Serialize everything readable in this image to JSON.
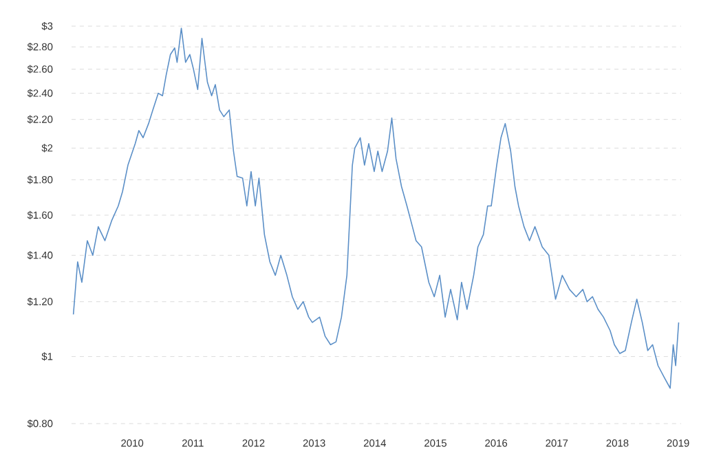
{
  "chart_data": {
    "type": "line",
    "log": "y",
    "grid": "y",
    "marker": "none",
    "line_style": "solid",
    "xlim": [
      2009,
      2019.05
    ],
    "ylim": [
      0.8,
      3
    ],
    "xticks": [
      {
        "value": 2010,
        "label": "2010"
      },
      {
        "value": 2011,
        "label": "2011"
      },
      {
        "value": 2012,
        "label": "2012"
      },
      {
        "value": 2013,
        "label": "2013"
      },
      {
        "value": 2014,
        "label": "2014"
      },
      {
        "value": 2015,
        "label": "2015"
      },
      {
        "value": 2016,
        "label": "2016"
      },
      {
        "value": 2017,
        "label": "2017"
      },
      {
        "value": 2018,
        "label": "2018"
      },
      {
        "value": 2019,
        "label": "2019"
      }
    ],
    "yticks": [
      {
        "value": 0.8,
        "label": "$0.80"
      },
      {
        "value": 1,
        "label": "$1"
      },
      {
        "value": 1.2,
        "label": "$1.20"
      },
      {
        "value": 1.4,
        "label": "$1.40"
      },
      {
        "value": 1.6,
        "label": "$1.60"
      },
      {
        "value": 1.8,
        "label": "$1.80"
      },
      {
        "value": 2,
        "label": "$2"
      },
      {
        "value": 2.2,
        "label": "$2.20"
      },
      {
        "value": 2.4,
        "label": "$2.40"
      },
      {
        "value": 2.6,
        "label": "$2.60"
      },
      {
        "value": 2.8,
        "label": "$2.80"
      },
      {
        "value": 3,
        "label": "$3"
      }
    ],
    "series": [
      {
        "color": "#5b8fc7",
        "x": [
          2009.03,
          2009.1,
          2009.17,
          2009.26,
          2009.35,
          2009.44,
          2009.55,
          2009.66,
          2009.77,
          2009.84,
          2009.93,
          2010.05,
          2010.11,
          2010.18,
          2010.27,
          2010.34,
          2010.43,
          2010.5,
          2010.56,
          2010.63,
          2010.7,
          2010.74,
          2010.81,
          2010.88,
          2010.95,
          2011.01,
          2011.08,
          2011.15,
          2011.24,
          2011.31,
          2011.37,
          2011.44,
          2011.51,
          2011.6,
          2011.67,
          2011.73,
          2011.82,
          2011.89,
          2011.96,
          2012.03,
          2012.09,
          2012.18,
          2012.27,
          2012.36,
          2012.45,
          2012.55,
          2012.64,
          2012.73,
          2012.82,
          2012.91,
          2012.97,
          2013.09,
          2013.18,
          2013.27,
          2013.36,
          2013.45,
          2013.54,
          2013.63,
          2013.67,
          2013.76,
          2013.83,
          2013.9,
          2013.99,
          2014.05,
          2014.12,
          2014.21,
          2014.28,
          2014.35,
          2014.44,
          2014.53,
          2014.62,
          2014.68,
          2014.77,
          2014.89,
          2014.98,
          2015.07,
          2015.16,
          2015.25,
          2015.36,
          2015.43,
          2015.52,
          2015.63,
          2015.7,
          2015.79,
          2015.86,
          2015.92,
          2016.01,
          2016.08,
          2016.15,
          2016.24,
          2016.31,
          2016.37,
          2016.46,
          2016.55,
          2016.64,
          2016.76,
          2016.87,
          2016.98,
          2017.09,
          2017.21,
          2017.32,
          2017.43,
          2017.5,
          2017.59,
          2017.68,
          2017.77,
          2017.88,
          2017.95,
          2018.04,
          2018.13,
          2018.23,
          2018.32,
          2018.41,
          2018.5,
          2018.58,
          2018.67,
          2018.78,
          2018.87,
          2018.92,
          2018.96,
          2019.01
        ],
        "values": [
          1.15,
          1.37,
          1.28,
          1.47,
          1.4,
          1.54,
          1.47,
          1.57,
          1.65,
          1.73,
          1.89,
          2.03,
          2.12,
          2.07,
          2.17,
          2.27,
          2.4,
          2.38,
          2.55,
          2.73,
          2.79,
          2.66,
          2.98,
          2.66,
          2.73,
          2.6,
          2.43,
          2.88,
          2.49,
          2.38,
          2.47,
          2.27,
          2.22,
          2.27,
          1.98,
          1.82,
          1.81,
          1.65,
          1.85,
          1.65,
          1.81,
          1.5,
          1.37,
          1.31,
          1.4,
          1.31,
          1.22,
          1.17,
          1.2,
          1.14,
          1.12,
          1.14,
          1.07,
          1.04,
          1.05,
          1.14,
          1.31,
          1.89,
          2.0,
          2.07,
          1.89,
          2.03,
          1.85,
          1.98,
          1.85,
          1.98,
          2.21,
          1.93,
          1.76,
          1.65,
          1.54,
          1.47,
          1.44,
          1.28,
          1.22,
          1.31,
          1.14,
          1.25,
          1.13,
          1.28,
          1.17,
          1.31,
          1.44,
          1.5,
          1.65,
          1.65,
          1.89,
          2.07,
          2.17,
          1.98,
          1.76,
          1.65,
          1.54,
          1.47,
          1.54,
          1.44,
          1.4,
          1.21,
          1.31,
          1.25,
          1.22,
          1.25,
          1.2,
          1.22,
          1.17,
          1.14,
          1.09,
          1.04,
          1.01,
          1.02,
          1.12,
          1.21,
          1.12,
          1.02,
          1.04,
          0.97,
          0.93,
          0.9,
          1.04,
          0.97,
          1.12
        ]
      }
    ]
  }
}
